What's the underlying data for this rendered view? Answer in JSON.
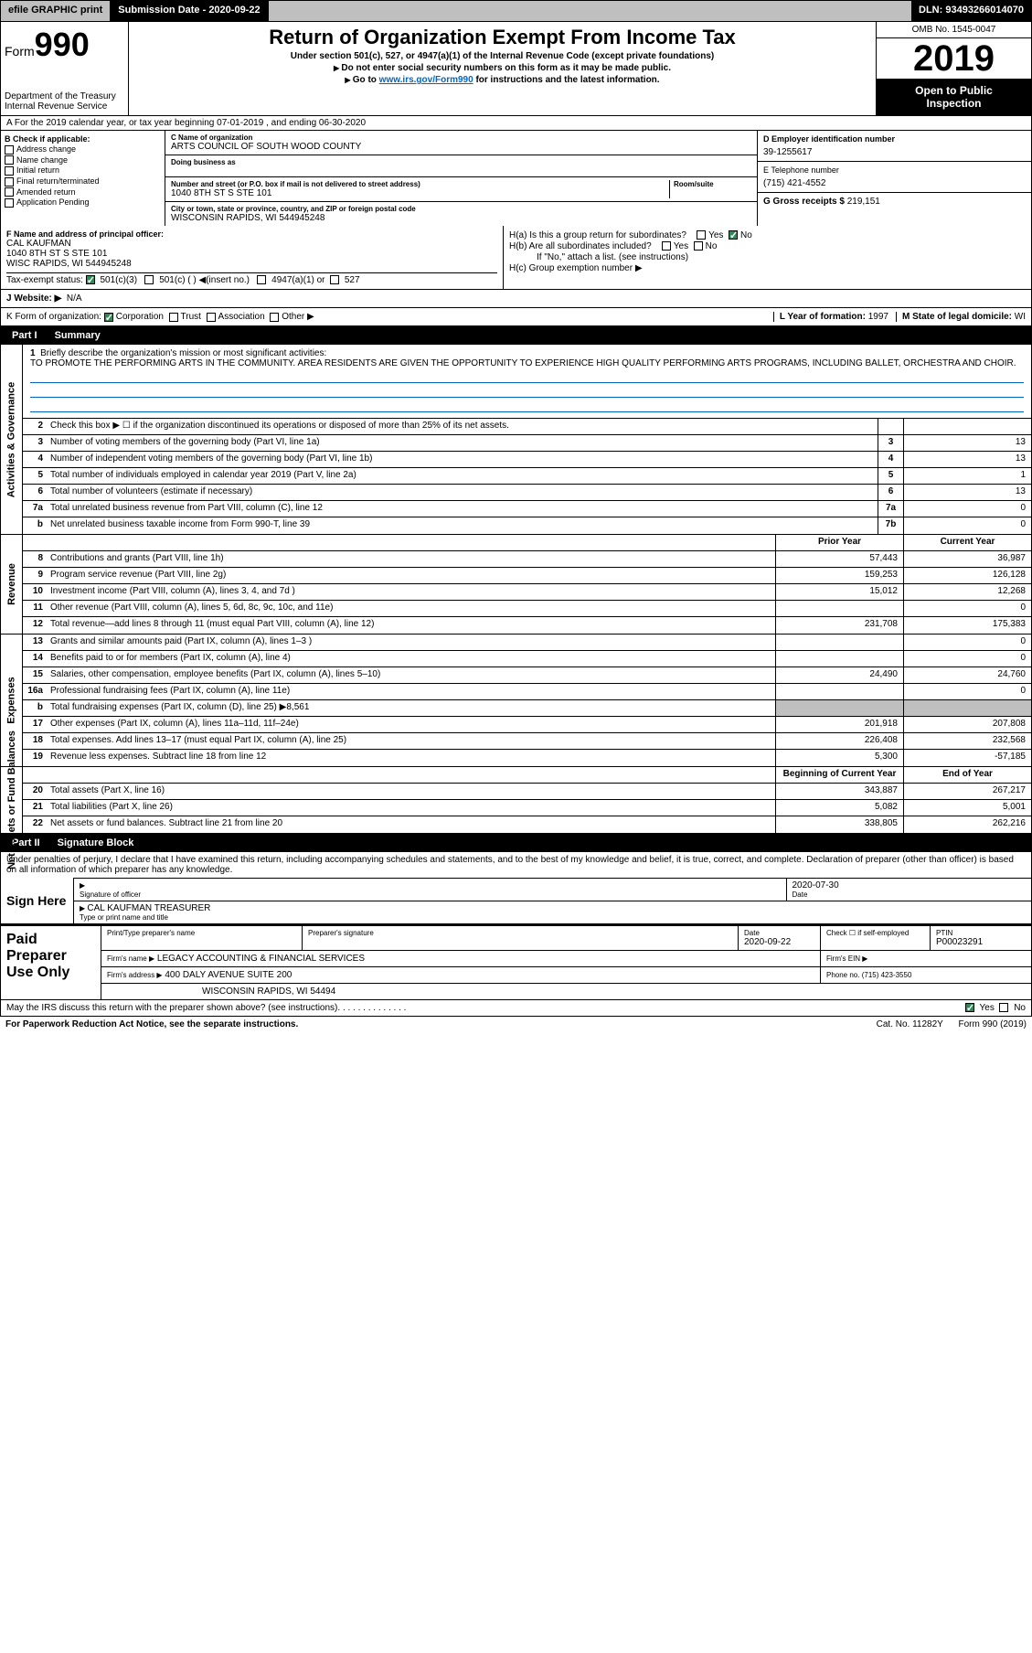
{
  "topbar": {
    "efile": "efile GRAPHIC print",
    "submission": "Submission Date - 2020-09-22",
    "dln": "DLN: 93493266014070"
  },
  "header": {
    "form_label": "Form",
    "form_num": "990",
    "dept1": "Department of the Treasury",
    "dept2": "Internal Revenue Service",
    "title": "Return of Organization Exempt From Income Tax",
    "sub1": "Under section 501(c), 527, or 4947(a)(1) of the Internal Revenue Code (except private foundations)",
    "sub2": "Do not enter social security numbers on this form as it may be made public.",
    "sub3_pre": "Go to ",
    "sub3_link": "www.irs.gov/Form990",
    "sub3_post": " for instructions and the latest information.",
    "omb": "OMB No. 1545-0047",
    "year": "2019",
    "open1": "Open to Public",
    "open2": "Inspection"
  },
  "line_a": "A For the 2019 calendar year, or tax year beginning 07-01-2019   , and ending 06-30-2020",
  "block_b": {
    "hdr": "B Check if applicable:",
    "opts": [
      "Address change",
      "Name change",
      "Initial return",
      "Final return/terminated",
      "Amended return",
      "Application Pending"
    ]
  },
  "block_c": {
    "name_lbl": "C Name of organization",
    "name_val": "ARTS COUNCIL OF SOUTH WOOD COUNTY",
    "dba_lbl": "Doing business as",
    "dba_val": "",
    "addr_lbl": "Number and street (or P.O. box if mail is not delivered to street address)",
    "room_lbl": "Room/suite",
    "addr_val": "1040 8TH ST S STE 101",
    "city_lbl": "City or town, state or province, country, and ZIP or foreign postal code",
    "city_val": "WISCONSIN RAPIDS, WI  544945248"
  },
  "block_d": {
    "lbl": "D Employer identification number",
    "val": "39-1255617"
  },
  "block_e": {
    "lbl": "E Telephone number",
    "val": "(715) 421-4552"
  },
  "block_g": {
    "lbl": "G Gross receipts $",
    "val": "219,151"
  },
  "block_f": {
    "lbl": "F  Name and address of principal officer:",
    "name": "CAL KAUFMAN",
    "addr1": "1040 8TH ST S STE 101",
    "addr2": "WISC RAPIDS, WI  544945248"
  },
  "block_h": {
    "a_lbl": "H(a)  Is this a group return for subordinates?",
    "b_lbl": "H(b)  Are all subordinates included?",
    "note": "If \"No,\" attach a list. (see instructions)",
    "c_lbl": "H(c)  Group exemption number ▶",
    "yes": "Yes",
    "no": "No"
  },
  "block_i": {
    "lbl": "Tax-exempt status:",
    "o1": "501(c)(3)",
    "o2": "501(c) (   ) ◀(insert no.)",
    "o3": "4947(a)(1) or",
    "o4": "527"
  },
  "block_j": {
    "lbl": "J   Website: ▶",
    "val": "N/A"
  },
  "block_k": {
    "lbl": "K Form of organization:",
    "o1": "Corporation",
    "o2": "Trust",
    "o3": "Association",
    "o4": "Other ▶",
    "l_lbl": "L Year of formation:",
    "l_val": "1997",
    "m_lbl": "M State of legal domicile:",
    "m_val": "WI"
  },
  "part1": {
    "num": "Part I",
    "title": "Summary"
  },
  "brief": {
    "num": "1",
    "lbl": "Briefly describe the organization's mission or most significant activities:",
    "text": "TO PROMOTE THE PERFORMING ARTS IN THE COMMUNITY. AREA RESIDENTS ARE GIVEN THE OPPORTUNITY TO EXPERIENCE HIGH QUALITY PERFORMING ARTS PROGRAMS, INCLUDING BALLET, ORCHESTRA AND CHOIR."
  },
  "activities": {
    "side": "Activities & Governance",
    "rows": [
      {
        "n": "2",
        "d": "Check this box ▶ ☐  if the organization discontinued its operations or disposed of more than 25% of its net assets.",
        "box": "",
        "v": ""
      },
      {
        "n": "3",
        "d": "Number of voting members of the governing body (Part VI, line 1a)",
        "box": "3",
        "v": "13"
      },
      {
        "n": "4",
        "d": "Number of independent voting members of the governing body (Part VI, line 1b)",
        "box": "4",
        "v": "13"
      },
      {
        "n": "5",
        "d": "Total number of individuals employed in calendar year 2019 (Part V, line 2a)",
        "box": "5",
        "v": "1"
      },
      {
        "n": "6",
        "d": "Total number of volunteers (estimate if necessary)",
        "box": "6",
        "v": "13"
      },
      {
        "n": "7a",
        "d": "Total unrelated business revenue from Part VIII, column (C), line 12",
        "box": "7a",
        "v": "0"
      },
      {
        "n": "b",
        "d": "Net unrelated business taxable income from Form 990-T, line 39",
        "box": "7b",
        "v": "0"
      }
    ]
  },
  "col_hdr": {
    "prior": "Prior Year",
    "current": "Current Year"
  },
  "revenue": {
    "side": "Revenue",
    "rows": [
      {
        "n": "8",
        "d": "Contributions and grants (Part VIII, line 1h)",
        "p": "57,443",
        "c": "36,987"
      },
      {
        "n": "9",
        "d": "Program service revenue (Part VIII, line 2g)",
        "p": "159,253",
        "c": "126,128"
      },
      {
        "n": "10",
        "d": "Investment income (Part VIII, column (A), lines 3, 4, and 7d )",
        "p": "15,012",
        "c": "12,268"
      },
      {
        "n": "11",
        "d": "Other revenue (Part VIII, column (A), lines 5, 6d, 8c, 9c, 10c, and 11e)",
        "p": "",
        "c": "0"
      },
      {
        "n": "12",
        "d": "Total revenue—add lines 8 through 11 (must equal Part VIII, column (A), line 12)",
        "p": "231,708",
        "c": "175,383"
      }
    ]
  },
  "expenses": {
    "side": "Expenses",
    "rows": [
      {
        "n": "13",
        "d": "Grants and similar amounts paid (Part IX, column (A), lines 1–3 )",
        "p": "",
        "c": "0"
      },
      {
        "n": "14",
        "d": "Benefits paid to or for members (Part IX, column (A), line 4)",
        "p": "",
        "c": "0"
      },
      {
        "n": "15",
        "d": "Salaries, other compensation, employee benefits (Part IX, column (A), lines 5–10)",
        "p": "24,490",
        "c": "24,760"
      },
      {
        "n": "16a",
        "d": "Professional fundraising fees (Part IX, column (A), line 11e)",
        "p": "",
        "c": "0"
      },
      {
        "n": "b",
        "d": "Total fundraising expenses (Part IX, column (D), line 25) ▶8,561",
        "p": "grey",
        "c": "grey"
      },
      {
        "n": "17",
        "d": "Other expenses (Part IX, column (A), lines 11a–11d, 11f–24e)",
        "p": "201,918",
        "c": "207,808"
      },
      {
        "n": "18",
        "d": "Total expenses. Add lines 13–17 (must equal Part IX, column (A), line 25)",
        "p": "226,408",
        "c": "232,568"
      },
      {
        "n": "19",
        "d": "Revenue less expenses. Subtract line 18 from line 12",
        "p": "5,300",
        "c": "-57,185"
      }
    ]
  },
  "col_hdr2": {
    "prior": "Beginning of Current Year",
    "current": "End of Year"
  },
  "netassets": {
    "side": "Net Assets or Fund Balances",
    "rows": [
      {
        "n": "20",
        "d": "Total assets (Part X, line 16)",
        "p": "343,887",
        "c": "267,217"
      },
      {
        "n": "21",
        "d": "Total liabilities (Part X, line 26)",
        "p": "5,082",
        "c": "5,001"
      },
      {
        "n": "22",
        "d": "Net assets or fund balances. Subtract line 21 from line 20",
        "p": "338,805",
        "c": "262,216"
      }
    ]
  },
  "part2": {
    "num": "Part II",
    "title": "Signature Block"
  },
  "sig": {
    "intro": "Under penalties of perjury, I declare that I have examined this return, including accompanying schedules and statements, and to the best of my knowledge and belief, it is true, correct, and complete. Declaration of preparer (other than officer) is based on all information of which preparer has any knowledge.",
    "sign_here": "Sign Here",
    "sig_lbl": "Signature of officer",
    "date_lbl": "Date",
    "date_val": "2020-07-30",
    "name": "CAL KAUFMAN  TREASURER",
    "name_lbl": "Type or print name and title"
  },
  "prep": {
    "left": "Paid Preparer Use Only",
    "r1": {
      "c1": "Print/Type preparer's name",
      "c2": "Preparer's signature",
      "c3": "Date",
      "c3v": "2020-09-22",
      "c4": "Check ☐ if self-employed",
      "c5": "PTIN",
      "c5v": "P00023291"
    },
    "r2": {
      "lbl": "Firm's name      ▶",
      "val": "LEGACY ACCOUNTING & FINANCIAL SERVICES",
      "ein": "Firm's EIN ▶"
    },
    "r3": {
      "lbl": "Firm's address ▶",
      "val": "400 DALY AVENUE SUITE 200",
      "ph": "Phone no. (715) 423-3550"
    },
    "r4": {
      "val": "WISCONSIN RAPIDS, WI  54494"
    }
  },
  "footer": {
    "q": "May the IRS discuss this return with the preparer shown above? (see instructions)",
    "yes": "Yes",
    "no": "No",
    "paperwork": "For Paperwork Reduction Act Notice, see the separate instructions.",
    "cat": "Cat. No. 11282Y",
    "form": "Form 990 (2019)"
  },
  "colors": {
    "grey": "#bfbfbf",
    "black": "#000000",
    "link": "#0066cc",
    "check": "#2e8b57"
  }
}
